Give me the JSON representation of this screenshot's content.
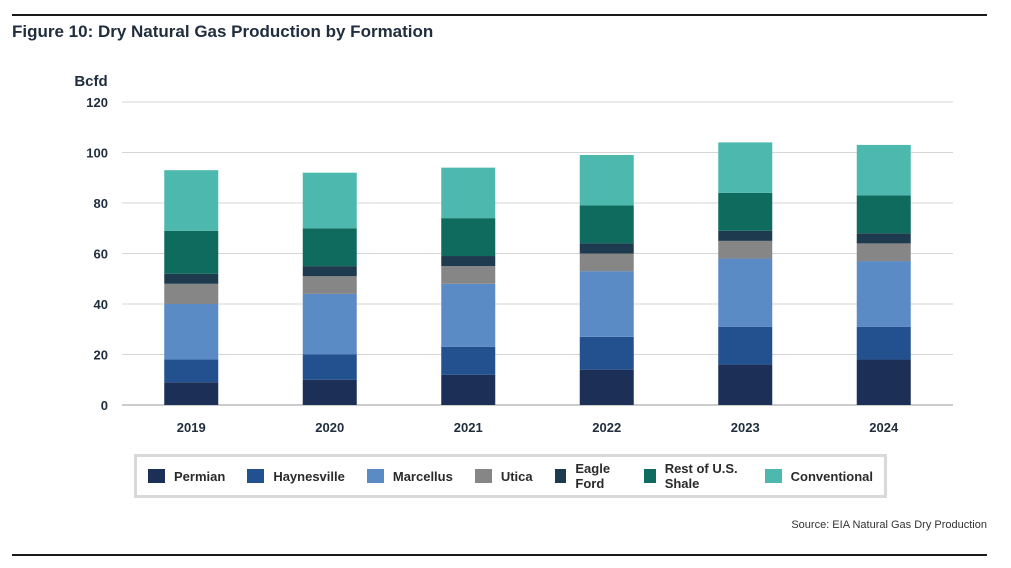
{
  "figure": {
    "title": "Figure 10: Dry Natural Gas Production by Formation",
    "source": "Source: EIA Natural Gas Dry Production"
  },
  "chart_data": {
    "type": "bar",
    "stacked": true,
    "ylabel": "Bcfd",
    "ylim": [
      0,
      120
    ],
    "yticks": [
      0,
      20,
      40,
      60,
      80,
      100,
      120
    ],
    "grid": true,
    "legend_position": "bottom",
    "categories": [
      "2019",
      "2020",
      "2021",
      "2022",
      "2023",
      "2024"
    ],
    "series": [
      {
        "name": "Permian",
        "color": "#1b2f57",
        "values": [
          9,
          10,
          12,
          14,
          16,
          18
        ]
      },
      {
        "name": "Haynesville",
        "color": "#23518f",
        "values": [
          9,
          10,
          11,
          13,
          15,
          13
        ]
      },
      {
        "name": "Marcellus",
        "color": "#5b8bc4",
        "values": [
          22,
          24,
          25,
          26,
          27,
          26
        ]
      },
      {
        "name": "Utica",
        "color": "#868686",
        "values": [
          8,
          7,
          7,
          7,
          7,
          7
        ]
      },
      {
        "name": "Eagle Ford",
        "color": "#1e3a4f",
        "values": [
          4,
          4,
          4,
          4,
          4,
          4
        ]
      },
      {
        "name": "Rest of U.S. Shale",
        "color": "#0e6b5e",
        "values": [
          17,
          15,
          15,
          15,
          15,
          15
        ]
      },
      {
        "name": "Conventional",
        "color": "#4db8ad",
        "values": [
          24,
          22,
          20,
          20,
          20,
          20
        ]
      }
    ]
  }
}
